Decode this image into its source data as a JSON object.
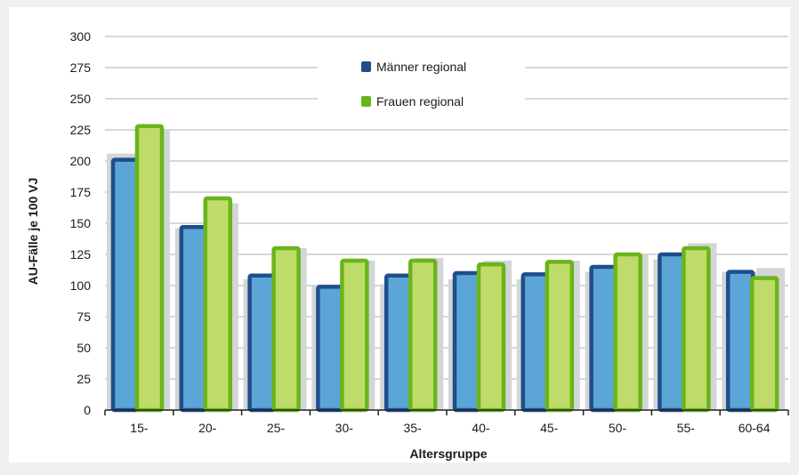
{
  "chart_data": {
    "type": "bar",
    "title": "",
    "xlabel": "Altersgruppe",
    "ylabel": "AU-Fälle je 100 VJ",
    "ylim": [
      0,
      300
    ],
    "yticks": [
      0,
      25,
      50,
      75,
      100,
      125,
      150,
      175,
      200,
      225,
      250,
      275,
      300
    ],
    "grid": true,
    "legend_position": "top-center",
    "categories": [
      "15-",
      "20-",
      "25-",
      "30-",
      "35-",
      "40-",
      "45-",
      "50-",
      "55-",
      "60-64"
    ],
    "series": [
      {
        "name": "Männer regional",
        "values": [
          201,
          147,
          108,
          99,
          108,
          110,
          109,
          115,
          125,
          111
        ]
      },
      {
        "name": "Frauen regional",
        "values": [
          228,
          170,
          130,
          120,
          120,
          117,
          119,
          125,
          130,
          106
        ]
      }
    ],
    "reference_series": {
      "values_men": [
        206,
        146,
        105,
        100,
        101,
        105,
        105,
        111,
        121,
        111
      ],
      "values_women": [
        225,
        166,
        130,
        120,
        122,
        120,
        120,
        125,
        134,
        114
      ]
    },
    "colors": {
      "men_fill": "#5ba6d6",
      "men_border": "#1f4e8c",
      "women_fill": "#bfdc6a",
      "women_border": "#6ab519",
      "reference": "#d3d5d6",
      "grid": "#c9cbcc",
      "plot_background": "#ffffff",
      "page_background": "#eef0f1"
    }
  }
}
